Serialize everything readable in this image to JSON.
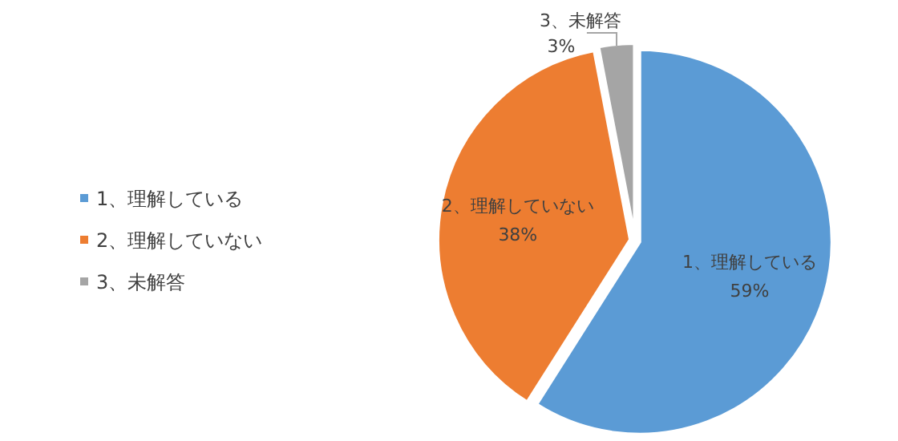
{
  "chart_data": {
    "type": "pie",
    "categories": [
      "1、理解している",
      "2、理解していない",
      "3、未解答"
    ],
    "values": [
      59,
      38,
      3
    ],
    "colors": [
      "#5b9bd5",
      "#ed7d31",
      "#a5a5a5"
    ],
    "value_labels": [
      "59%",
      "38%",
      "3%"
    ],
    "legend": "left"
  }
}
